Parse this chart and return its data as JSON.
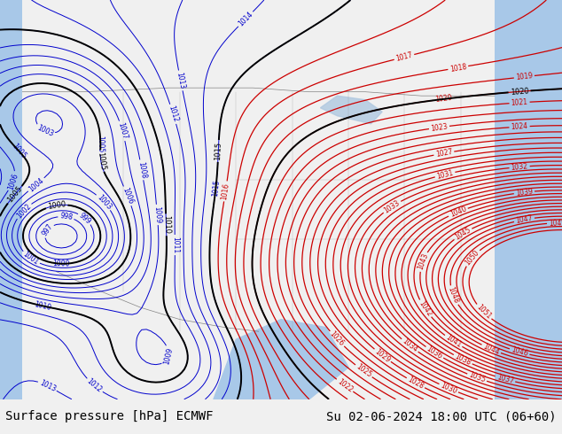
{
  "title_left": "Surface pressure [hPa] ECMWF",
  "title_right": "Su 02-06-2024 18:00 UTC (06+60)",
  "background_color": "#f0f0f0",
  "map_bg_land": "#c8e6a0",
  "map_bg_water": "#a0c8e6",
  "isobar_color_blue": "#0000cc",
  "isobar_color_red": "#cc0000",
  "isobar_color_black": "#000000",
  "title_fontsize": 10,
  "footer_bg": "#d0d0d0",
  "fig_width": 6.34,
  "fig_height": 4.9
}
